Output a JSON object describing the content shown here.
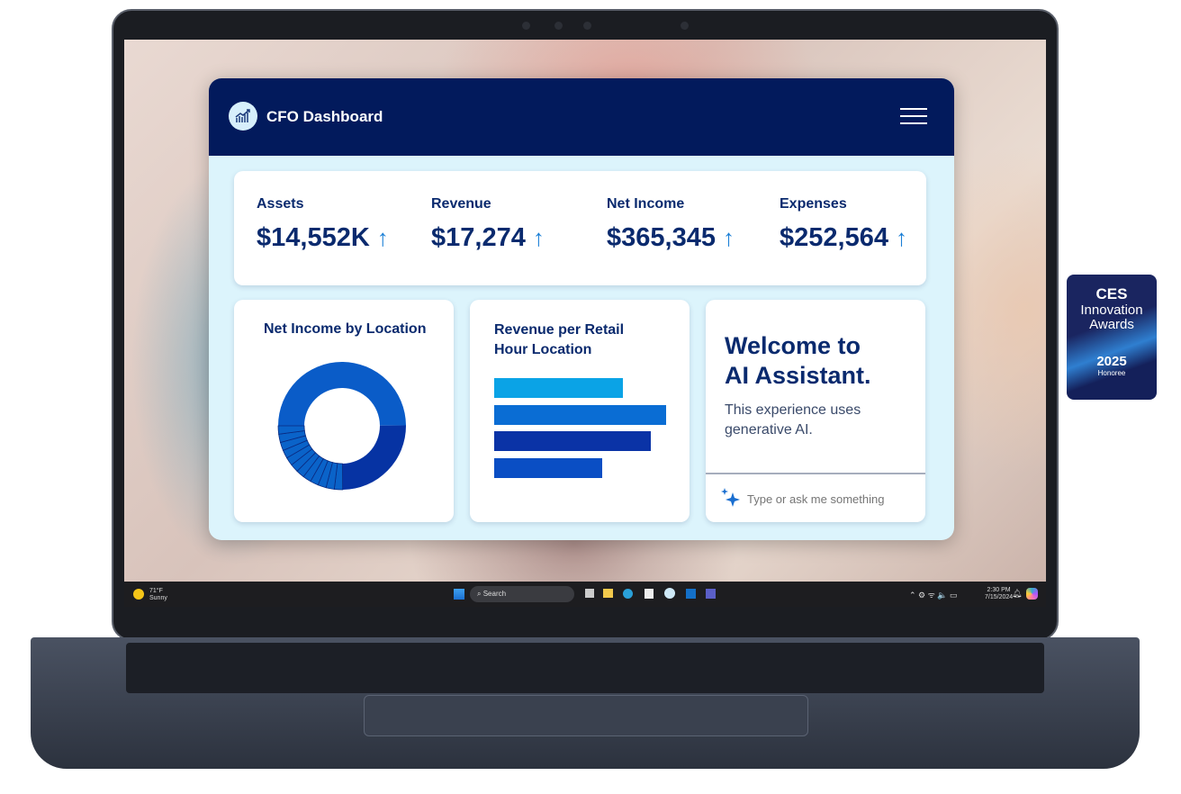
{
  "header": {
    "title": "CFO Dashboard",
    "logo_icon": "chart-growth-icon",
    "menu_icon": "hamburger-icon"
  },
  "kpis": [
    {
      "label": "Assets",
      "value": "$14,552K",
      "trend": "up"
    },
    {
      "label": "Revenue",
      "value": "$17,274",
      "trend": "up"
    },
    {
      "label": "Net Income",
      "value": "$365,345",
      "trend": "up"
    },
    {
      "label": "Expenses",
      "value": "$252,564",
      "trend": "up"
    }
  ],
  "trend_arrow": "↑",
  "donut_card": {
    "title": "Net Income by Location"
  },
  "bar_card": {
    "title_line1": "Revenue per Retail",
    "title_line2": "Hour Location"
  },
  "chart_data": [
    {
      "type": "pie",
      "title": "Net Income by Location",
      "donut": true,
      "slices": [
        50,
        25,
        2.1,
        2.1,
        2.1,
        2.1,
        2.1,
        2.1,
        2.1,
        2.1,
        2.1,
        2.1,
        2.1,
        2.1
      ],
      "colors": {
        "main": "#0a5cc8",
        "dark": "#0633a3",
        "small": "#0a63c9"
      }
    },
    {
      "type": "bar",
      "orientation": "horizontal",
      "title": "Revenue per Retail Hour Location",
      "values": [
        75,
        100,
        91,
        63
      ],
      "colors": [
        "#0aa3e6",
        "#0a6dd4",
        "#0a33a6",
        "#0a4ec4"
      ]
    }
  ],
  "assistant": {
    "title_line1": "Welcome to",
    "title_line2": "AI Assistant.",
    "subtitle_line1": "This experience uses",
    "subtitle_line2": "generative AI.",
    "placeholder": "Type or ask me something",
    "sparkle_icon": "sparkle-icon"
  },
  "taskbar": {
    "weather_temp": "71°F",
    "weather_desc": "Sunny",
    "search": "Search",
    "time": "2:30 PM",
    "date": "7/15/2024"
  },
  "badge": {
    "brand": "CES",
    "line1": "Innovation",
    "line2": "Awards",
    "year": "2025",
    "status": "Honoree"
  }
}
